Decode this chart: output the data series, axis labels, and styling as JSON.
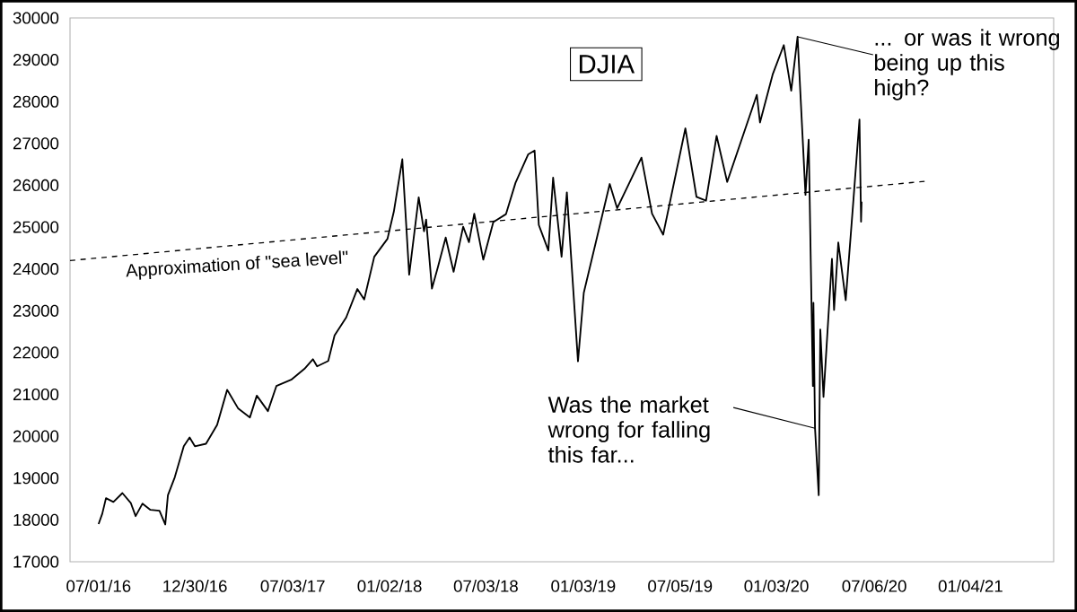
{
  "chart_data": {
    "type": "line",
    "title": "DJIA",
    "xlim": [
      "2016-05-08",
      "2021-06-10"
    ],
    "xticks": [
      {
        "value": "2016-07-01",
        "label": "07/01/16"
      },
      {
        "value": "2016-12-30",
        "label": "12/30/16"
      },
      {
        "value": "2017-07-03",
        "label": "07/03/17"
      },
      {
        "value": "2018-01-02",
        "label": "01/02/18"
      },
      {
        "value": "2018-07-03",
        "label": "07/03/18"
      },
      {
        "value": "2019-01-03",
        "label": "01/03/19"
      },
      {
        "value": "2019-07-05",
        "label": "07/05/19"
      },
      {
        "value": "2020-01-03",
        "label": "01/03/20"
      },
      {
        "value": "2020-07-06",
        "label": "07/06/20"
      },
      {
        "value": "2021-01-04",
        "label": "01/04/21"
      }
    ],
    "ylim": [
      17000,
      30000
    ],
    "yticks": [
      17000,
      18000,
      19000,
      20000,
      21000,
      22000,
      23000,
      24000,
      25000,
      26000,
      27000,
      28000,
      29000,
      30000
    ],
    "grid": false,
    "marker": "none",
    "annotations": [
      "Approximation of \"sea level\"",
      {
        "text": "... or was it wrong being up this high?",
        "x": "2020-02-12",
        "y": 29550
      },
      {
        "text": "Was the market wrong for falling this far...",
        "x": "2020-03-16",
        "y": 20190
      }
    ],
    "series": [
      {
        "color": "#000000",
        "line_style": "solid",
        "x": [
          "2016-07-01",
          "2016-07-08",
          "2016-07-15",
          "2016-07-29",
          "2016-08-15",
          "2016-08-31",
          "2016-09-09",
          "2016-09-22",
          "2016-10-07",
          "2016-10-24",
          "2016-11-04",
          "2016-11-09",
          "2016-11-22",
          "2016-12-09",
          "2016-12-20",
          "2016-12-30",
          "2017-01-20",
          "2017-02-10",
          "2017-03-01",
          "2017-03-22",
          "2017-04-13",
          "2017-04-26",
          "2017-05-17",
          "2017-06-02",
          "2017-06-30",
          "2017-07-25",
          "2017-08-10",
          "2017-08-18",
          "2017-09-08",
          "2017-09-20",
          "2017-10-12",
          "2017-11-02",
          "2017-11-15",
          "2017-12-04",
          "2017-12-29",
          "2018-01-10",
          "2018-01-26",
          "2018-02-08",
          "2018-02-26",
          "2018-03-08",
          "2018-03-12",
          "2018-03-23",
          "2018-04-03",
          "2018-04-18",
          "2018-05-03",
          "2018-05-21",
          "2018-06-01",
          "2018-06-11",
          "2018-06-28",
          "2018-07-17",
          "2018-08-10",
          "2018-08-28",
          "2018-09-21",
          "2018-10-03",
          "2018-10-11",
          "2018-10-29",
          "2018-11-07",
          "2018-11-23",
          "2018-12-03",
          "2018-12-24",
          "2019-01-04",
          "2019-02-22",
          "2019-03-08",
          "2019-04-23",
          "2019-05-13",
          "2019-06-03",
          "2019-07-15",
          "2019-08-05",
          "2019-08-23",
          "2019-09-12",
          "2019-10-02",
          "2019-11-27",
          "2019-12-03",
          "2019-12-27",
          "2020-01-17",
          "2020-01-31",
          "2020-02-12",
          "2020-02-27",
          "2020-03-04",
          "2020-03-12",
          "2020-03-13",
          "2020-03-16",
          "2020-03-23",
          "2020-03-26",
          "2020-04-01",
          "2020-04-17",
          "2020-04-21",
          "2020-04-29",
          "2020-05-13",
          "2020-05-27",
          "2020-06-08",
          "2020-06-11",
          "2020-06-12"
        ],
        "values": [
          17900,
          18150,
          18520,
          18430,
          18640,
          18400,
          18090,
          18390,
          18240,
          18220,
          17890,
          18590,
          19020,
          19760,
          19970,
          19760,
          19820,
          20270,
          21110,
          20660,
          20450,
          20970,
          20600,
          21200,
          21350,
          21610,
          21840,
          21670,
          21800,
          22410,
          22840,
          23520,
          23270,
          24290,
          24720,
          25370,
          26620,
          23860,
          25710,
          24900,
          25180,
          23530,
          24030,
          24750,
          23930,
          25010,
          24640,
          25320,
          24220,
          25120,
          25310,
          26060,
          26740,
          26830,
          25050,
          24440,
          26180,
          24290,
          25830,
          21790,
          23430,
          26030,
          25450,
          26660,
          25320,
          24820,
          27360,
          25720,
          25630,
          27180,
          26080,
          28160,
          27500,
          28650,
          29350,
          28260,
          29550,
          25770,
          27090,
          21200,
          23190,
          20190,
          18590,
          22550,
          20940,
          24240,
          23020,
          24630,
          23250,
          25550,
          27570,
          25130,
          25610
        ]
      },
      {
        "type": "line",
        "color": "#000000",
        "line_style": "dashed",
        "x": [
          "2016-05-08",
          "2020-10-15"
        ],
        "values": [
          24200,
          26100
        ]
      }
    ]
  }
}
